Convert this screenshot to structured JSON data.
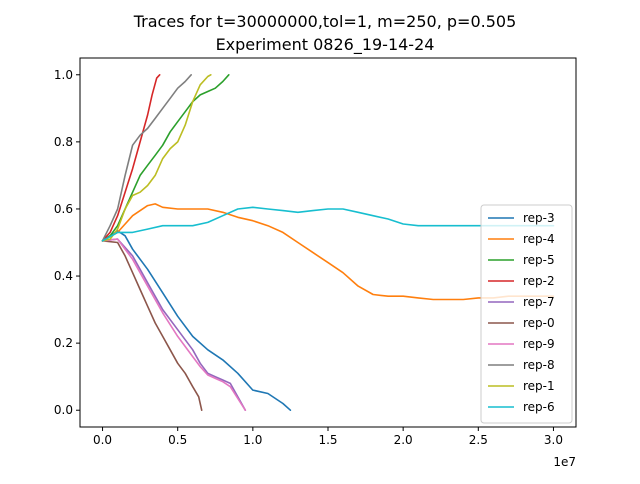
{
  "chart_data": {
    "type": "line",
    "title": "Traces for t=30000000,tol=1, m=250, p=0.505",
    "subtitle": "Experiment 0826_19-14-24",
    "xlabel": "",
    "ylabel": "",
    "x_offset_label": "1e7",
    "xlim": [
      -1500000,
      31500000
    ],
    "ylim": [
      -0.05,
      1.05
    ],
    "x_ticks": [
      0,
      5000000,
      10000000,
      15000000,
      20000000,
      25000000,
      30000000
    ],
    "x_tick_labels": [
      "0.0",
      "0.5",
      "1.0",
      "1.5",
      "2.0",
      "2.5",
      "3.0"
    ],
    "y_ticks": [
      0.0,
      0.2,
      0.4,
      0.6,
      0.8,
      1.0
    ],
    "y_tick_labels": [
      "0.0",
      "0.2",
      "0.4",
      "0.6",
      "0.8",
      "1.0"
    ],
    "grid": false,
    "legend_position": "lower-right",
    "series": [
      {
        "name": "rep-3",
        "color": "#1f77b4",
        "x": [
          0,
          500000,
          1000000,
          1500000,
          2000000,
          3000000,
          4000000,
          5000000,
          6000000,
          7000000,
          8000000,
          9000000,
          10000000,
          11000000,
          12000000,
          12500000
        ],
        "y": [
          0.505,
          0.52,
          0.535,
          0.52,
          0.48,
          0.42,
          0.35,
          0.28,
          0.22,
          0.18,
          0.15,
          0.11,
          0.06,
          0.05,
          0.02,
          0.0
        ]
      },
      {
        "name": "rep-4",
        "color": "#ff7f0e",
        "x": [
          0,
          1000000,
          2000000,
          3000000,
          3500000,
          4000000,
          5000000,
          6000000,
          7000000,
          8000000,
          9000000,
          10000000,
          11000000,
          12000000,
          13000000,
          14000000,
          15000000,
          16000000,
          17000000,
          18000000,
          19000000,
          20000000,
          21000000,
          22000000,
          23000000,
          24000000,
          25000000,
          26000000,
          27000000,
          28000000,
          29000000,
          30000000
        ],
        "y": [
          0.505,
          0.53,
          0.58,
          0.61,
          0.615,
          0.605,
          0.6,
          0.6,
          0.6,
          0.59,
          0.575,
          0.565,
          0.55,
          0.53,
          0.5,
          0.47,
          0.44,
          0.41,
          0.37,
          0.345,
          0.34,
          0.34,
          0.335,
          0.33,
          0.33,
          0.33,
          0.335,
          0.335,
          0.34,
          0.34,
          0.34,
          0.34
        ]
      },
      {
        "name": "rep-5",
        "color": "#2ca02c",
        "x": [
          0,
          500000,
          1000000,
          1500000,
          2000000,
          2500000,
          3000000,
          3500000,
          4000000,
          4500000,
          5000000,
          5500000,
          6000000,
          6500000,
          7000000,
          7500000,
          8000000,
          8400000
        ],
        "y": [
          0.505,
          0.52,
          0.55,
          0.6,
          0.65,
          0.7,
          0.73,
          0.76,
          0.79,
          0.83,
          0.86,
          0.89,
          0.92,
          0.94,
          0.95,
          0.96,
          0.98,
          1.0
        ]
      },
      {
        "name": "rep-2",
        "color": "#d62728",
        "x": [
          0,
          500000,
          1000000,
          1500000,
          2000000,
          2500000,
          3000000,
          3300000,
          3600000,
          3800000
        ],
        "y": [
          0.505,
          0.53,
          0.58,
          0.65,
          0.72,
          0.8,
          0.88,
          0.94,
          0.99,
          1.0
        ]
      },
      {
        "name": "rep-7",
        "color": "#9467bd",
        "x": [
          0,
          1000000,
          2000000,
          3000000,
          4000000,
          5000000,
          6000000,
          6500000,
          7000000,
          7500000,
          8000000,
          8500000,
          9000000,
          9500000
        ],
        "y": [
          0.505,
          0.51,
          0.46,
          0.38,
          0.3,
          0.24,
          0.18,
          0.14,
          0.11,
          0.1,
          0.09,
          0.08,
          0.04,
          0.0
        ]
      },
      {
        "name": "rep-0",
        "color": "#8c564b",
        "x": [
          0,
          1000000,
          1500000,
          2000000,
          2500000,
          3000000,
          3500000,
          4000000,
          4500000,
          5000000,
          5500000,
          6000000,
          6400000,
          6600000
        ],
        "y": [
          0.505,
          0.5,
          0.46,
          0.41,
          0.36,
          0.31,
          0.26,
          0.22,
          0.18,
          0.14,
          0.11,
          0.07,
          0.04,
          0.0
        ]
      },
      {
        "name": "rep-9",
        "color": "#e377c2",
        "x": [
          0,
          1000000,
          2000000,
          3000000,
          4000000,
          5000000,
          6000000,
          6500000,
          7000000,
          7500000,
          8000000,
          8500000,
          9000000,
          9500000
        ],
        "y": [
          0.505,
          0.51,
          0.45,
          0.37,
          0.29,
          0.22,
          0.16,
          0.13,
          0.105,
          0.095,
          0.085,
          0.07,
          0.035,
          0.0
        ]
      },
      {
        "name": "rep-8",
        "color": "#7f7f7f",
        "x": [
          0,
          500000,
          1000000,
          1500000,
          2000000,
          2500000,
          3000000,
          3500000,
          4000000,
          4500000,
          5000000,
          5500000,
          5900000
        ],
        "y": [
          0.505,
          0.55,
          0.6,
          0.7,
          0.79,
          0.82,
          0.84,
          0.87,
          0.9,
          0.93,
          0.96,
          0.98,
          1.0
        ]
      },
      {
        "name": "rep-1",
        "color": "#bcbd22",
        "x": [
          0,
          500000,
          1000000,
          1500000,
          2000000,
          2500000,
          3000000,
          3500000,
          4000000,
          4500000,
          5000000,
          5500000,
          6000000,
          6500000,
          7000000,
          7200000
        ],
        "y": [
          0.505,
          0.51,
          0.54,
          0.6,
          0.64,
          0.65,
          0.67,
          0.7,
          0.75,
          0.78,
          0.8,
          0.85,
          0.92,
          0.97,
          0.995,
          1.0
        ]
      },
      {
        "name": "rep-6",
        "color": "#17becf",
        "x": [
          0,
          1000000,
          2000000,
          3000000,
          4000000,
          5000000,
          6000000,
          7000000,
          8000000,
          9000000,
          10000000,
          11000000,
          12000000,
          13000000,
          14000000,
          15000000,
          16000000,
          17000000,
          18000000,
          19000000,
          20000000,
          21000000,
          22000000,
          23000000,
          24000000,
          25000000,
          26000000,
          27000000,
          28000000,
          29000000,
          30000000
        ],
        "y": [
          0.505,
          0.53,
          0.53,
          0.54,
          0.55,
          0.55,
          0.55,
          0.56,
          0.58,
          0.6,
          0.605,
          0.6,
          0.595,
          0.59,
          0.595,
          0.6,
          0.6,
          0.59,
          0.58,
          0.57,
          0.555,
          0.55,
          0.55,
          0.55,
          0.55,
          0.55,
          0.55,
          0.55,
          0.55,
          0.55,
          0.55
        ]
      }
    ]
  }
}
